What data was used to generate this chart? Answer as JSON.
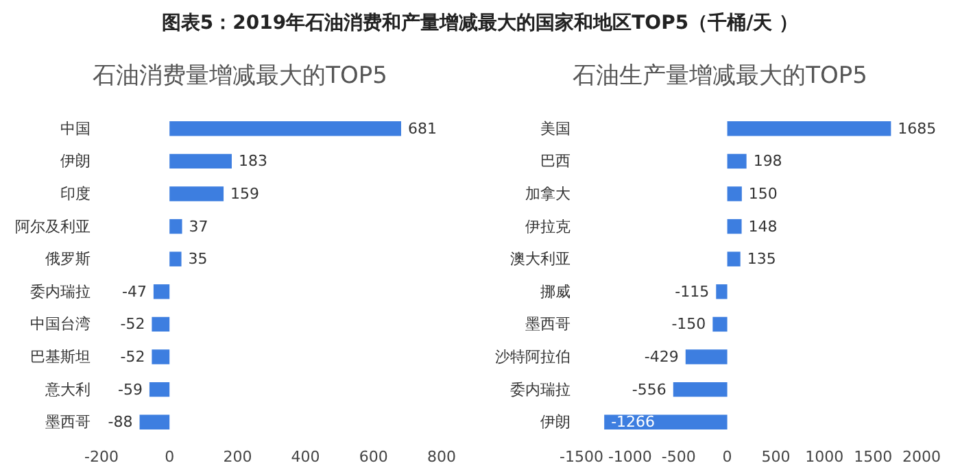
{
  "chart_data": [
    {
      "type": "other",
      "title": "图表5：2019年石油消费和产量增减最大的国家和地区TOP5（千桶/天 ）"
    },
    {
      "type": "bar",
      "orientation": "horizontal",
      "title": "石油消费量增减最大的TOP5",
      "categories": [
        "中国",
        "伊朗",
        "印度",
        "阿尔及利亚",
        "俄罗斯",
        "委内瑞拉",
        "中国台湾",
        "巴基斯坦",
        "意大利",
        "墨西哥"
      ],
      "values": [
        681,
        183,
        159,
        37,
        35,
        -47,
        -52,
        -52,
        -59,
        -88
      ],
      "color": "#3d7ee0",
      "xlim": [
        -200,
        800
      ],
      "xticks": [
        -200,
        0,
        200,
        400,
        600,
        800
      ],
      "data_labels": true,
      "grid": false
    },
    {
      "type": "bar",
      "orientation": "horizontal",
      "title": "石油生产量增减最大的TOP5",
      "categories": [
        "美国",
        "巴西",
        "加拿大",
        "伊拉克",
        "澳大利亚",
        "挪威",
        "墨西哥",
        "沙特阿拉伯",
        "委内瑞拉",
        "伊朗"
      ],
      "values": [
        1685,
        198,
        150,
        148,
        135,
        -115,
        -150,
        -429,
        -556,
        -1266
      ],
      "color": "#3d7ee0",
      "xlim": [
        -1500,
        2000
      ],
      "xticks": [
        -1500,
        -1000,
        -500,
        0,
        500,
        1000,
        1500,
        2000
      ],
      "data_labels": true,
      "grid": false
    }
  ]
}
